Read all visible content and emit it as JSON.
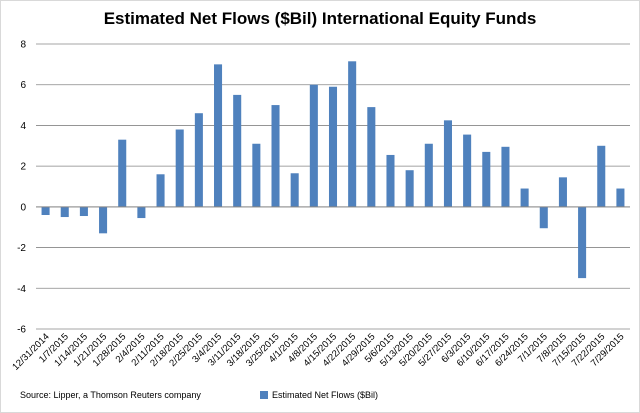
{
  "chart_data": {
    "type": "bar",
    "title": "Estimated Net Flows ($Bil) International Equity Funds",
    "xlabel": "",
    "ylabel": "",
    "ylim": [
      -6,
      8
    ],
    "yticks": [
      -6,
      -4,
      -2,
      0,
      2,
      4,
      6,
      8
    ],
    "grid": true,
    "legend_position": "bottom",
    "categories": [
      "12/31/2014",
      "1/7/2015",
      "1/14/2015",
      "1/21/2015",
      "1/28/2015",
      "2/4/2015",
      "2/11/2015",
      "2/18/2015",
      "2/25/2015",
      "3/4/2015",
      "3/11/2015",
      "3/18/2015",
      "3/25/2015",
      "4/1/2015",
      "4/8/2015",
      "4/15/2015",
      "4/22/2015",
      "4/29/2015",
      "5/6/2015",
      "5/13/2015",
      "5/20/2015",
      "5/27/2015",
      "6/3/2015",
      "6/10/2015",
      "6/17/2015",
      "6/24/2015",
      "7/1/2015",
      "7/8/2015",
      "7/15/2015",
      "7/22/2015",
      "7/29/2015"
    ],
    "series": [
      {
        "name": "Estimated Net Flows ($Bil)",
        "color": "#4f81bd",
        "values": [
          -0.4,
          -0.5,
          -0.45,
          -1.3,
          3.3,
          -0.55,
          1.6,
          3.8,
          4.6,
          7.0,
          5.5,
          3.1,
          5.0,
          1.65,
          6.0,
          5.9,
          7.15,
          4.9,
          2.55,
          1.8,
          3.1,
          4.25,
          3.55,
          2.7,
          2.95,
          0.9,
          -1.05,
          1.45,
          -3.5,
          3.0,
          0.9
        ]
      }
    ]
  },
  "source_note": "Source: Lipper, a Thomson Reuters company",
  "colors": {
    "bar": "#4f81bd",
    "grid": "#868686"
  }
}
